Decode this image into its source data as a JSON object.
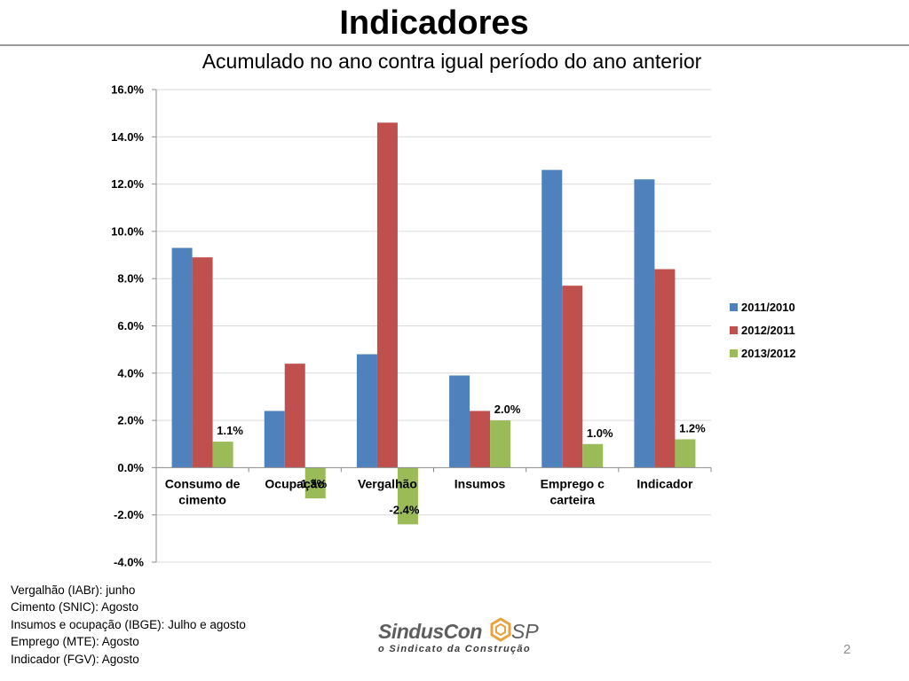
{
  "slide": {
    "title": "Indicadores",
    "subtitle": "Acumulado no ano contra igual período do ano anterior",
    "page_number": "2"
  },
  "chart_data": {
    "type": "bar",
    "categories": [
      [
        "Consumo de",
        "cimento"
      ],
      [
        "Ocupação"
      ],
      [
        "Vergalhão"
      ],
      [
        "Insumos"
      ],
      [
        "Emprego c",
        "carteira"
      ],
      [
        "Indicador"
      ]
    ],
    "series": [
      {
        "name": "2011/2010",
        "color": "#4f81bd",
        "values": [
          9.3,
          2.4,
          4.8,
          3.9,
          12.6,
          12.2
        ]
      },
      {
        "name": "2012/2011",
        "color": "#c0504d",
        "values": [
          8.9,
          4.4,
          14.6,
          2.4,
          7.7,
          8.4
        ]
      },
      {
        "name": "2013/2012",
        "color": "#9bbb59",
        "values": [
          1.1,
          -1.3,
          -2.4,
          2.0,
          1.0,
          1.2
        ],
        "data_labels": [
          "1.1%",
          "-1.3%",
          "-2.4%",
          "2.0%",
          "1.0%",
          "1.2%"
        ]
      }
    ],
    "y_ticks": [
      "16.0%",
      "14.0%",
      "12.0%",
      "10.0%",
      "8.0%",
      "6.0%",
      "4.0%",
      "2.0%",
      "0.0%",
      "-2.0%",
      "-4.0%"
    ],
    "ylim": [
      -4,
      16
    ],
    "ytick_step": 2,
    "gridlines": true,
    "legend_position": "right"
  },
  "notes": [
    "Vergalhão (IABr): junho",
    "Cimento (SNIC): Agosto",
    "Insumos e ocupação (IBGE): Julho e agosto",
    "Emprego (MTE): Agosto",
    "Indicador (FGV): Agosto"
  ],
  "logo": {
    "name": "SindusCon",
    "suffix": "SP",
    "tagline": "o Sindicato da Construção"
  }
}
